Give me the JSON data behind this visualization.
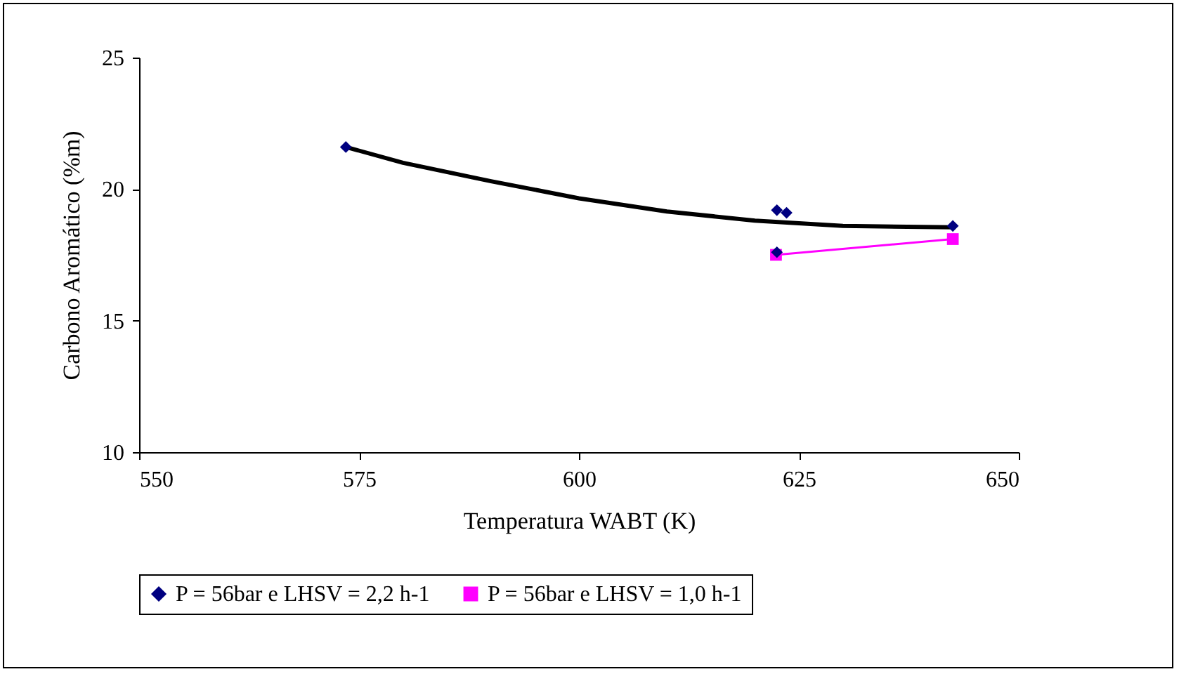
{
  "chart_data": {
    "type": "scatter",
    "xlabel": "Temperatura WABT (K)",
    "ylabel": "Carbono Aromático (%m)",
    "xlim": [
      550,
      650
    ],
    "xticks": [
      550,
      575,
      600,
      625,
      650
    ],
    "ylim": [
      10,
      25
    ],
    "yticks": [
      10,
      15,
      20,
      25
    ],
    "grid": false,
    "legend": "bottom",
    "series": [
      {
        "type": "line",
        "color": "#000000",
        "marker": "none",
        "x": [
          573.5,
          580,
          590,
          600,
          610,
          620,
          630,
          642.5
        ],
        "values": [
          21.6,
          21.0,
          20.3,
          19.65,
          19.15,
          18.8,
          18.6,
          18.55
        ]
      },
      {
        "name": "P = 56bar e LHSV = 2,2 h-1",
        "color": "#000080",
        "marker": "diamond",
        "x": [
          573.5,
          622.5,
          623.6,
          622.5,
          642.5
        ],
        "values": [
          21.6,
          19.2,
          19.1,
          17.6,
          18.6
        ]
      },
      {
        "type": "line",
        "name": "P = 56bar e LHSV = 1,0 h-1",
        "color": "#ff00ff",
        "marker": "square",
        "x": [
          622.4,
          642.5
        ],
        "values": [
          17.5,
          18.1
        ]
      }
    ]
  }
}
